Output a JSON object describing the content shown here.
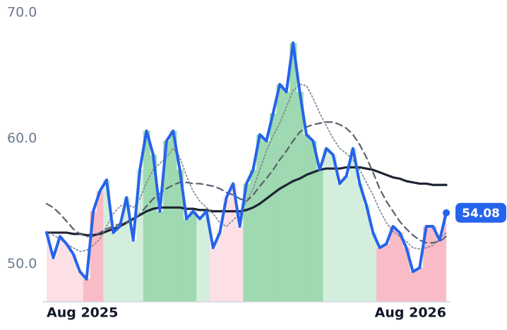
{
  "chart_data": {
    "type": "line",
    "categories": [
      "Aug 2025",
      null,
      null,
      null,
      null,
      null,
      null,
      null,
      null,
      null,
      null,
      null,
      null,
      null,
      null,
      null,
      null,
      null,
      null,
      null,
      null,
      null,
      null,
      null,
      null,
      null,
      null,
      null,
      null,
      null,
      null,
      null,
      null,
      null,
      null,
      null,
      null,
      null,
      null,
      null,
      null,
      null,
      null,
      null,
      null,
      null,
      null,
      null,
      null,
      null,
      null,
      null,
      null,
      null,
      null,
      null,
      null,
      null,
      null,
      null,
      "Aug 2026"
    ],
    "ylim": [
      47,
      70
    ],
    "yticks": [
      {
        "value": 50,
        "label": "50.0"
      },
      {
        "value": 60,
        "label": "60.0"
      },
      {
        "value": 70,
        "label": "70.0"
      }
    ],
    "grid": false,
    "bar_colors": [
      "#fde0e5",
      "#fde0e5",
      "#fde0e5",
      "#fde0e5",
      "#fde0e5",
      "#fde0e5",
      "#f9bcc7",
      "#f9bcc7",
      "#f9bcc7",
      "#d3eedc",
      "#d3eedc",
      "#d3eedc",
      "#d3eedc",
      "#d3eedc",
      "#d3eedc",
      "#9ed9b1",
      "#9ed9b1",
      "#9ed9b1",
      "#9ed9b1",
      "#9ed9b1",
      "#9ed9b1",
      "#9ed9b1",
      "#9ed9b1",
      "#d3eedc",
      "#d3eedc",
      "#fde0e5",
      "#fde0e5",
      "#fde0e5",
      "#fde0e5",
      "#fde0e5",
      "#9ed9b1",
      "#9ed9b1",
      "#9ed9b1",
      "#9ed9b1",
      "#9ed9b1",
      "#9ed9b1",
      "#9ed9b1",
      "#9ed9b1",
      "#9ed9b1",
      "#9ed9b1",
      "#9ed9b1",
      "#9ed9b1",
      "#d3eedc",
      "#d3eedc",
      "#d3eedc",
      "#d3eedc",
      "#d3eedc",
      "#d3eedc",
      "#d3eedc",
      "#d3eedc",
      "#f9bcc7",
      "#f9bcc7",
      "#f9bcc7",
      "#f9bcc7",
      "#f9bcc7",
      "#f9bcc7",
      "#f9bcc7",
      "#f9bcc7",
      "#f9bcc7",
      "#f9bcc7",
      "#f9bcc7"
    ],
    "series": [
      {
        "color": "#2563eb",
        "style": "solid",
        "values": [
          52.5,
          50.5,
          52.2,
          51.6,
          50.8,
          49.4,
          48.8,
          54.2,
          55.8,
          56.7,
          52.5,
          53.0,
          55.3,
          51.9,
          57.5,
          60.6,
          58.7,
          54.2,
          59.8,
          60.6,
          57.5,
          53.6,
          54.2,
          53.6,
          54.2,
          51.3,
          52.5,
          55.3,
          56.4,
          53.0,
          56.4,
          57.5,
          60.3,
          59.8,
          62.0,
          64.3,
          63.7,
          67.6,
          63.7,
          60.3,
          59.8,
          57.5,
          59.2,
          58.7,
          56.4,
          57.0,
          59.2,
          56.4,
          54.7,
          52.5,
          51.3,
          51.6,
          53.0,
          52.5,
          51.3,
          49.4,
          49.7,
          53.0,
          53.0,
          51.9,
          54.08
        ]
      },
      {
        "color": "#1e2433",
        "style": "heavy",
        "values": [
          52.5,
          52.5,
          52.5,
          52.5,
          52.4,
          52.4,
          52.3,
          52.3,
          52.4,
          52.6,
          52.8,
          53.0,
          53.3,
          53.6,
          53.9,
          54.2,
          54.4,
          54.5,
          54.5,
          54.5,
          54.5,
          54.4,
          54.4,
          54.3,
          54.3,
          54.2,
          54.2,
          54.2,
          54.2,
          54.2,
          54.3,
          54.5,
          54.8,
          55.2,
          55.6,
          56.0,
          56.3,
          56.6,
          56.8,
          57.1,
          57.3,
          57.5,
          57.6,
          57.6,
          57.6,
          57.7,
          57.7,
          57.7,
          57.6,
          57.5,
          57.3,
          57.1,
          56.9,
          56.8,
          56.6,
          56.5,
          56.4,
          56.4,
          56.3,
          56.3,
          56.3
        ]
      },
      {
        "color": "#59606f",
        "style": "dashed",
        "values": [
          54.8,
          54.5,
          54.0,
          53.4,
          52.8,
          52.4,
          52.2,
          52.2,
          52.5,
          52.8,
          53.0,
          53.2,
          53.3,
          53.5,
          54.0,
          54.6,
          55.2,
          55.6,
          56.0,
          56.3,
          56.5,
          56.5,
          56.4,
          56.4,
          56.3,
          56.2,
          56.0,
          55.7,
          55.5,
          55.2,
          55.0,
          55.5,
          56.2,
          56.8,
          57.5,
          58.3,
          59.0,
          59.8,
          60.5,
          60.9,
          61.1,
          61.2,
          61.3,
          61.3,
          61.1,
          60.8,
          60.3,
          59.5,
          58.5,
          57.3,
          56.0,
          55.0,
          54.2,
          53.4,
          52.8,
          52.3,
          51.9,
          51.7,
          51.7,
          51.8,
          52.2
        ]
      },
      {
        "color": "#7c8392",
        "style": "dotted",
        "values": [
          52.6,
          52.3,
          52.0,
          51.6,
          51.3,
          51.0,
          51.1,
          51.5,
          52.0,
          53.0,
          54.0,
          54.6,
          54.8,
          54.5,
          55.2,
          56.5,
          57.5,
          58.0,
          58.5,
          59.2,
          58.5,
          57.0,
          55.8,
          55.0,
          54.5,
          54.0,
          53.3,
          53.0,
          53.5,
          54.0,
          55.0,
          56.0,
          57.5,
          59.0,
          60.2,
          61.2,
          62.5,
          63.8,
          64.3,
          64.2,
          63.2,
          62.0,
          61.0,
          60.0,
          59.2,
          58.8,
          58.3,
          57.5,
          56.5,
          55.5,
          54.3,
          53.3,
          52.6,
          52.2,
          51.8,
          51.3,
          51.2,
          51.3,
          51.5,
          52.0,
          52.5
        ]
      }
    ]
  }
}
